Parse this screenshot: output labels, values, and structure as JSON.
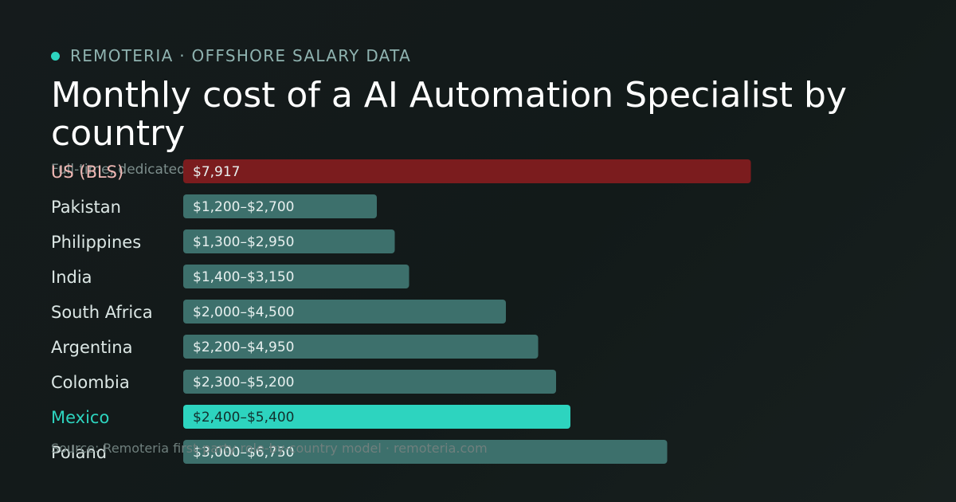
{
  "brand": {
    "label": "REMOTERIA · OFFSHORE SALARY DATA"
  },
  "chart_data": {
    "type": "bar",
    "orientation": "horizontal",
    "title": "Monthly cost of a AI Automation Specialist by country",
    "subtitle": "Full-time, dedicated",
    "source": "Source: Remoteria first-party role-by-country model · remoteria.com",
    "xlim": [
      0,
      9000
    ],
    "categories": [
      "US (BLS)",
      "Pakistan",
      "Philippines",
      "India",
      "South Africa",
      "Argentina",
      "Colombia",
      "Mexico",
      "Poland"
    ],
    "ranges": [
      {
        "low": 7917,
        "high": 7917,
        "label": "$7,917",
        "highlight": "us"
      },
      {
        "low": 1200,
        "high": 2700,
        "label": "$1,200–$2,700",
        "highlight": "none"
      },
      {
        "low": 1300,
        "high": 2950,
        "label": "$1,300–$2,950",
        "highlight": "none"
      },
      {
        "low": 1400,
        "high": 3150,
        "label": "$1,400–$3,150",
        "highlight": "none"
      },
      {
        "low": 2000,
        "high": 4500,
        "label": "$2,000–$4,500",
        "highlight": "none"
      },
      {
        "low": 2200,
        "high": 4950,
        "label": "$2,200–$4,950",
        "highlight": "none"
      },
      {
        "low": 2300,
        "high": 5200,
        "label": "$2,300–$5,200",
        "highlight": "none"
      },
      {
        "low": 2400,
        "high": 5400,
        "label": "$2,400–$5,400",
        "highlight": "mexico"
      },
      {
        "low": 3000,
        "high": 6750,
        "label": "$3,000–$6,750",
        "highlight": "none"
      }
    ],
    "grid": false,
    "legend": "none"
  },
  "colors": {
    "us_bar": "#7b1c1e",
    "us_label": "#f0b8b4",
    "default_bar": "#3d706c",
    "default_label": "#dce7e5",
    "mexico_bar": "#2dd4bf",
    "mexico_label": "#2dd4bf",
    "mexico_value": "#12302d",
    "bar_value": "#e8f0ef"
  }
}
